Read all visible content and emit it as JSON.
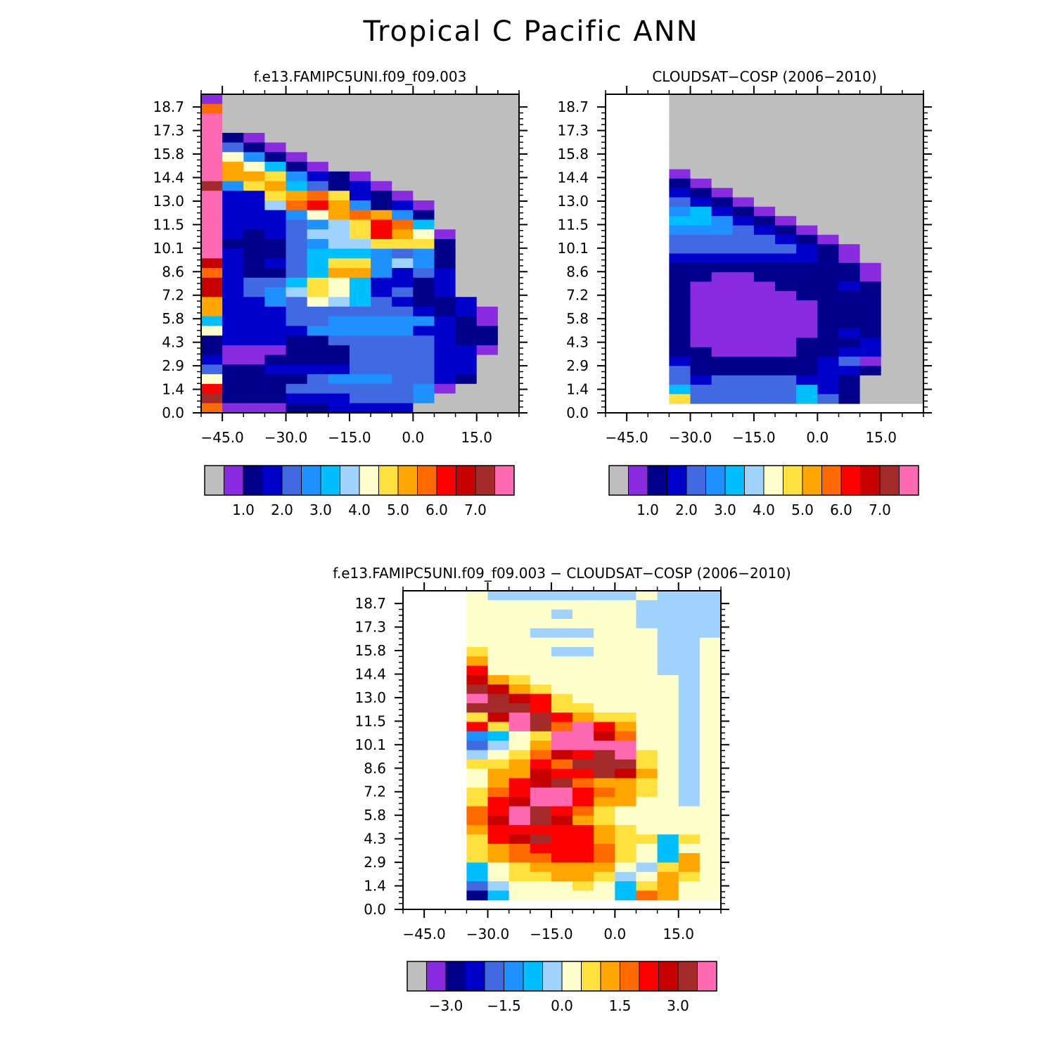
{
  "page_title": "Tropical C Pacific ANN",
  "colors": {
    "missing": "#BEBEBE",
    "palette": [
      "#BEBEBE",
      "#8A2BE2",
      "#00008B",
      "#0000CD",
      "#4169E1",
      "#1E90FF",
      "#00BFFF",
      "#A0D2FF",
      "#FFFFCC",
      "#FFE03C",
      "#FFA500",
      "#FF6A00",
      "#FF0000",
      "#C80000",
      "#A52A2A",
      "#FF69B4"
    ]
  },
  "chart_data": [
    {
      "type": "heatmap",
      "title": "f.e13.FAMIPC5UNI.f09_f09.003",
      "xlabel": "",
      "ylabel": "",
      "xlim": [
        -50,
        25
      ],
      "ylim": [
        0,
        19.5
      ],
      "x_ticks": [
        "−45.0",
        "−30.0",
        "−15.0",
        "0.0",
        "15.0"
      ],
      "x_tick_values": [
        -45,
        -30,
        -15,
        0,
        15
      ],
      "y_ticks": [
        "0.0",
        "1.4",
        "2.9",
        "4.3",
        "5.8",
        "7.2",
        "8.6",
        "10.1",
        "11.5",
        "13.0",
        "14.4",
        "15.8",
        "17.3",
        "18.7"
      ],
      "y_tick_values": [
        0.0,
        1.44,
        2.88,
        4.32,
        5.76,
        7.2,
        8.64,
        10.08,
        11.52,
        12.96,
        14.4,
        15.84,
        17.28,
        18.72
      ],
      "colorbar": {
        "labels": [
          "1.0",
          "2.0",
          "3.0",
          "4.0",
          "5.0",
          "6.0",
          "7.0"
        ],
        "label_values": [
          1,
          2,
          3,
          4,
          5,
          6,
          7
        ]
      },
      "grid_note": "color class indices 0-15 into colors.palette; rows listed from top (19.5) to bottom (0.0); columns from -50 to 25 in 5-unit steps",
      "rows": [
        "1 0 0 0 0 0 0 0 0 0 0 0 0 0 0",
        "11 0 0 0 0 0 0 0 0 0 0 0 0 0 0",
        "15 0 0 0 0 0 0 0 0 0 0 0 0 0 0",
        "15 0 0 0 0 0 0 0 0 0 0 0 0 0 0",
        "15 2 1 0 0 0 0 0 0 0 0 0 0 0 0",
        "15 4 2 1 0 0 0 0 0 0 0 0 0 0 0",
        "15 8 5 2 1 0 0 0 0 0 0 0 0 0 0",
        "15 10 8 6 2 1 0 0 0 0 0 0 0 0 0",
        "15 10 10 9 5 3 2 1 0 0 0 0 0 0 0",
        "14 5 9 10 6 4 2 3 1 0 0 0 0 0 0",
        "15 3 3 9 10 11 9 3 2 1 0 0 0 0 0",
        "15 3 3 7 11 12 10 5 2 3 1 0 0 0 0",
        "15 3 3 3 5 8 10 11 10 5 2 0 0 0 0",
        "15 3 3 3 4 5 7 9 12 11 6 0 0 0 0",
        "15 3 2 3 4 7 7 9 12 10 8 1 0 0 0",
        "15 2 2 2 4 5 7 7 9 9 9 2 0 0 0",
        "15 3 2 2 4 6 6 6 5 4 5 2 0 0 0",
        "13 3 2 3 4 6 9 9 5 7 5 2 0 0 0",
        "11 3 2 2 4 6 10 10 5 3 4 3 0 0 0",
        "13 3 4 4 6 9 8 6 3 3 2 3 0 0 0",
        "13 3 4 5 7 9 8 6 3 4 2 3 0 0 0",
        "10 3 3 5 4 8 7 6 4 3 2 2 3 0 0",
        "10 3 3 3 4 4 4 4 4 4 3 2 3 1 0",
        "6 3 3 3 4 4 5 5 5 5 5 3 2 1 0",
        "8 3 3 3 3 5 5 5 5 5 3 3 2 2 0",
        "2 3 3 3 2 2 4 4 4 4 4 3 2 2 0",
        "2 1 1 1 2 2 2 4 4 4 4 3 3 1 0",
        "3 1 1 2 2 2 2 4 4 4 4 3 3 0 0",
        "4 2 2 3 3 3 3 4 4 4 4 3 3 0 0",
        "8 2 2 2 2 4 5 5 5 4 4 3 2 0 0",
        "12 2 2 2 4 4 4 4 4 4 5 1 0 0 0",
        "14 2 2 2 3 3 3 4 4 4 5 0 0 0 0",
        "11 1 1 1 2 2 3 3 3 3 0 0 0 0 0"
      ]
    },
    {
      "type": "heatmap",
      "title": "CLOUDSAT−COSP (2006−2010)",
      "xlabel": "",
      "ylabel": "",
      "xlim": [
        -50,
        25
      ],
      "ylim": [
        0,
        19.5
      ],
      "x_ticks": [
        "−45.0",
        "−30.0",
        "−15.0",
        "0.0",
        "15.0"
      ],
      "x_tick_values": [
        -45,
        -30,
        -15,
        0,
        15
      ],
      "y_ticks": [
        "0.0",
        "1.4",
        "2.9",
        "4.3",
        "5.8",
        "7.2",
        "8.6",
        "10.1",
        "11.5",
        "13.0",
        "14.4",
        "15.8",
        "17.3",
        "18.7"
      ],
      "y_tick_values": [
        0.0,
        1.44,
        2.88,
        4.32,
        5.76,
        7.2,
        8.64,
        10.08,
        11.52,
        12.96,
        14.4,
        15.84,
        17.28,
        18.72
      ],
      "colorbar": {
        "labels": [
          "1.0",
          "2.0",
          "3.0",
          "4.0",
          "5.0",
          "6.0",
          "7.0"
        ],
        "label_values": [
          1,
          2,
          3,
          4,
          5,
          6,
          7
        ]
      },
      "grid_note": "color class indices 0-15 (-1 = blank); rows from top (19.5) to bottom; columns from -50 to 25 in 5-unit steps",
      "rows": [
        "-1 -1 -1 0 0 0 0 0 0 0 0 0 0 0 0",
        "-1 -1 -1 0 0 0 0 0 0 0 0 0 0 0 0",
        "-1 -1 -1 0 0 0 0 0 0 0 0 0 0 0 0",
        "-1 -1 -1 0 0 0 0 0 0 0 0 0 0 0 0",
        "-1 -1 -1 0 0 0 0 0 0 0 0 0 0 0 0",
        "-1 -1 -1 0 0 0 0 0 0 0 0 0 0 0 0",
        "-1 -1 -1 0 0 0 0 0 0 0 0 0 0 0 0",
        "-1 -1 -1 0 0 0 0 0 0 0 0 0 0 0 0",
        "-1 -1 -1 1 0 0 0 0 0 0 0 0 0 0 0",
        "-1 -1 -1 2 1 0 0 0 0 0 0 0 0 0 0",
        "-1 -1 -1 3 2 1 0 0 0 0 0 0 0 0 0",
        "-1 -1 -1 4 3 2 1 0 0 0 0 0 0 0 0",
        "-1 -1 -1 5 6 3 2 1 0 0 0 0 0 0 0",
        "-1 -1 -1 6 6 5 3 2 1 0 0 0 0 0 0",
        "-1 -1 -1 5 5 5 4 3 2 1 0 0 0 0 0",
        "-1 -1 -1 4 4 4 4 4 3 2 1 0 0 0 0",
        "-1 -1 -1 4 4 4 4 4 4 3 2 1 0 0 0",
        "-1 -1 -1 3 3 3 3 3 3 3 2 1 0 0 0",
        "-1 -1 -1 2 2 2 2 2 2 2 2 2 1 0 0",
        "-1 -1 -1 2 2 1 1 2 2 2 2 2 1 0 0",
        "-1 -1 -1 2 1 1 1 1 2 2 2 3 2 0 0",
        "-1 -1 -1 2 1 1 1 1 1 2 2 2 2 0 0",
        "-1 -1 -1 2 1 1 1 1 1 1 2 2 2 0 0",
        "-1 -1 -1 2 1 1 1 1 1 1 2 2 2 0 0",
        "-1 -1 -1 2 1 1 1 1 1 1 2 2 2 0 0",
        "-1 -1 -1 2 1 1 1 1 1 1 2 3 2 0 0",
        "-1 -1 -1 2 1 1 1 1 1 2 2 2 3 0 0",
        "-1 -1 -1 2 2 1 1 1 1 2 2 3 3 0 0",
        "-1 -1 -1 3 2 2 2 2 2 2 3 4 1 0 0",
        "-1 -1 -1 4 2 2 2 2 2 2 3 3 2 0 0",
        "-1 -1 -1 4 3 4 4 4 4 3 3 2 0 0 0",
        "-1 -1 -1 6 4 4 4 4 4 6 3 2 0 0 0",
        "-1 -1 -1 9 4 4 4 4 4 6 4 2 0 0 0",
        "-1 -1 -1 -1 -1 -1 -1 -1 -1 -1 -1 -1 -1 -1 -1"
      ]
    },
    {
      "type": "heatmap",
      "title": "f.e13.FAMIPC5UNI.f09_f09.003 − CLOUDSAT−COSP (2006−2010)",
      "xlabel": "",
      "ylabel": "",
      "xlim": [
        -50,
        25
      ],
      "ylim": [
        0,
        19.5
      ],
      "x_ticks": [
        "−45.0",
        "−30.0",
        "−15.0",
        "0.0",
        "15.0"
      ],
      "x_tick_values": [
        -45,
        -30,
        -15,
        0,
        15
      ],
      "y_ticks": [
        "0.0",
        "1.4",
        "2.9",
        "4.3",
        "5.8",
        "7.2",
        "8.6",
        "10.1",
        "11.5",
        "13.0",
        "14.4",
        "15.8",
        "17.3",
        "18.7"
      ],
      "y_tick_values": [
        0.0,
        1.44,
        2.88,
        4.32,
        5.76,
        7.2,
        8.64,
        10.08,
        11.52,
        12.96,
        14.4,
        15.84,
        17.28,
        18.72
      ],
      "colorbar": {
        "labels": [
          "−3.0",
          "−1.5",
          "0.0",
          "1.5",
          "3.0"
        ],
        "label_values": [
          -3.0,
          -1.5,
          0.0,
          1.5,
          3.0
        ]
      },
      "grid_note": "color class indices 0-15 (-1 = blank); rows from top (19.5) to bottom; columns from -50 to 25 in 5-unit steps",
      "rows": [
        "-1 -1 -1 8 7 7 7 7 7 7 7 8 7 7 7",
        "-1 -1 -1 8 8 8 8 8 8 8 8 7 7 7 7",
        "-1 -1 -1 8 8 8 8 7 8 8 8 7 7 7 7",
        "-1 -1 -1 8 8 8 8 8 8 8 8 7 7 7 7",
        "-1 -1 -1 8 8 8 7 7 7 8 8 8 7 7 7",
        "-1 -1 -1 8 8 8 8 8 8 8 8 8 7 7 8",
        "-1 -1 -1 9 8 8 8 7 7 8 8 8 7 7 8",
        "-1 -1 -1 10 8 8 8 8 8 8 8 8 7 7 8",
        "-1 -1 -1 12 8 8 8 8 8 8 8 8 7 7 8",
        "-1 -1 -1 13 10 9 8 8 8 8 8 8 8 7 8",
        "-1 -1 -1 14 13 10 9 8 8 8 8 8 8 7 8",
        "-1 -1 -1 15 14 13 12 9 8 8 8 8 8 7 8",
        "-1 -1 -1 14 14 14 12 9 9 8 8 8 8 7 8",
        "-1 -1 -1 9 13 15 14 12 10 9 9 8 8 7 8",
        "-1 -1 -1 12 9 15 14 11 15 12 10 8 8 7 8",
        "-1 -1 -1 5 6 8 9 15 15 13 11 8 8 7 8",
        "-1 -1 -1 4 7 8 10 15 15 15 15 8 8 7 8",
        "-1 -1 -1 7 8 9 11 13 12 14 15 9 8 7 8",
        "-1 -1 -1 9 9 10 12 11 14 14 14 9 8 7 8",
        "-1 -1 -1 8 10 10 13 12 12 14 13 10 8 7 8",
        "-1 -1 -1 8 10 12 13 14 11 10 10 9 8 7 8",
        "-1 -1 -1 9 11 12 15 15 12 11 10 9 8 7 8",
        "-1 -1 -1 9 12 13 15 15 12 10 10 8 8 7 8",
        "-1 -1 -1 11 12 15 14 12 11 9 8 8 8 8 8",
        "-1 -1 -1 11 13 15 14 13 10 9 8 8 8 8 8",
        "-1 -1 -1 10 12 12 12 12 12 10 9 8 8 8 8",
        "-1 -1 -1 9 12 13 14 12 12 10 9 9 6 9 8",
        "-1 -1 -1 9 10 11 12 12 12 11 9 8 6 8 8",
        "-1 -1 -1 9 10 11 11 12 12 11 9 8 6 10 8",
        "-1 -1 -1 6 8 9 10 10 10 10 8 7 9 10 8",
        "-1 -1 -1 6 8 9 9 10 10 9 7 8 10 9 8",
        "-1 -1 -1 4 7 8 8 8 9 8 6 9 10 8 8",
        "-1 -1 -1 2 6 8 8 8 8 8 6 11 10 8 8",
        "-1 -1 -1 -1 -1 -1 -1 -1 -1 -1 -1 -1 -1 -1 -1"
      ]
    }
  ]
}
